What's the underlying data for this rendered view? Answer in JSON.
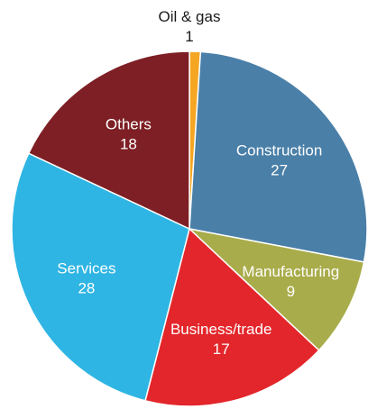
{
  "chart_data": {
    "type": "pie",
    "title": "",
    "unit": "",
    "slices": [
      {
        "label": "Oil & gas",
        "value": 1,
        "color": "#F5A623",
        "label_color": "#1a1a1a",
        "label_outside": true
      },
      {
        "label": "Construction",
        "value": 27,
        "color": "#4A7FA8",
        "label_color": "#ffffff",
        "label_outside": false
      },
      {
        "label": "Manufacturing",
        "value": 9,
        "color": "#A9AC4A",
        "label_color": "#ffffff",
        "label_outside": false
      },
      {
        "label": "Business/trade",
        "value": 17,
        "color": "#E3262B",
        "label_color": "#ffffff",
        "label_outside": false
      },
      {
        "label": "Services",
        "value": 28,
        "color": "#2EB5E3",
        "label_color": "#ffffff",
        "label_outside": false
      },
      {
        "label": "Others",
        "value": 18,
        "color": "#7D1F24",
        "label_color": "#ffffff",
        "label_outside": false
      }
    ],
    "start_angle_deg": 0,
    "direction": "clockwise"
  }
}
